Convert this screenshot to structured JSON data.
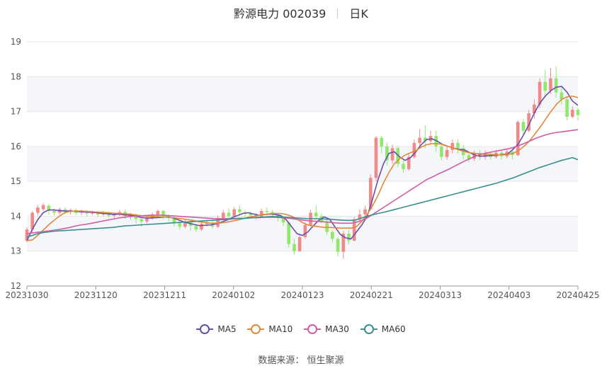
{
  "header": {
    "title": "黔源电力 002039",
    "period": "日K"
  },
  "source": "数据来源：  恒生聚源",
  "chart_data": {
    "type": "candlestick",
    "ylim": [
      12,
      19
    ],
    "yticks": [
      12,
      13,
      14,
      15,
      16,
      17,
      18,
      19
    ],
    "x_ticks": [
      "20231030",
      "20231120",
      "20231211",
      "20240102",
      "20240123",
      "20240221",
      "20240313",
      "20240403",
      "20240425"
    ],
    "colors": {
      "up": "#f08a8a",
      "down": "#8fe86a",
      "grid": "#e6e6e6",
      "band": "#f5f6fa",
      "axis": "#999999"
    },
    "candles": [
      [
        13.3,
        13.62,
        13.25,
        13.68
      ],
      [
        13.62,
        14.1,
        13.55,
        14.15
      ],
      [
        14.1,
        14.25,
        14.02,
        14.32
      ],
      [
        14.2,
        14.32,
        14.15,
        14.38
      ],
      [
        14.3,
        14.15,
        14.05,
        14.35
      ],
      [
        14.15,
        14.1,
        14.02,
        14.22
      ],
      [
        14.1,
        14.2,
        14.05,
        14.25
      ],
      [
        14.2,
        14.12,
        14.06,
        14.26
      ],
      [
        14.12,
        14.18,
        14.05,
        14.22
      ],
      [
        14.18,
        14.1,
        14.04,
        14.22
      ],
      [
        14.1,
        14.15,
        14.03,
        14.2
      ],
      [
        14.15,
        14.08,
        14.0,
        14.18
      ],
      [
        14.08,
        14.12,
        14.02,
        14.16
      ],
      [
        14.12,
        14.05,
        13.98,
        14.16
      ],
      [
        14.05,
        14.1,
        14.0,
        14.15
      ],
      [
        14.1,
        14.02,
        13.96,
        14.14
      ],
      [
        14.02,
        14.06,
        13.95,
        14.1
      ],
      [
        14.06,
        14.12,
        14.0,
        14.18
      ],
      [
        14.12,
        14.0,
        13.92,
        14.2
      ],
      [
        14.0,
        14.05,
        13.9,
        14.1
      ],
      [
        14.05,
        13.92,
        13.8,
        14.08
      ],
      [
        13.92,
        13.85,
        13.7,
        13.98
      ],
      [
        13.85,
        13.95,
        13.8,
        14.02
      ],
      [
        13.95,
        14.05,
        13.9,
        14.1
      ],
      [
        14.05,
        14.15,
        14.0,
        14.2
      ],
      [
        14.15,
        14.0,
        13.92,
        14.18
      ],
      [
        14.0,
        13.95,
        13.85,
        14.05
      ],
      [
        13.95,
        13.8,
        13.7,
        14.0
      ],
      [
        13.8,
        13.7,
        13.62,
        13.86
      ],
      [
        13.7,
        13.85,
        13.65,
        13.9
      ],
      [
        13.85,
        13.72,
        13.58,
        13.9
      ],
      [
        13.72,
        13.62,
        13.55,
        13.78
      ],
      [
        13.62,
        13.78,
        13.58,
        13.85
      ],
      [
        13.78,
        13.82,
        13.7,
        13.9
      ],
      [
        13.82,
        13.7,
        13.65,
        13.88
      ],
      [
        13.7,
        13.95,
        13.66,
        14.02
      ],
      [
        13.95,
        14.1,
        13.88,
        14.18
      ],
      [
        14.1,
        14.0,
        13.92,
        14.22
      ],
      [
        14.0,
        14.2,
        13.96,
        14.26
      ],
      [
        14.2,
        14.12,
        14.05,
        14.3
      ],
      [
        14.12,
        14.08,
        13.98,
        14.18
      ],
      [
        14.08,
        14.02,
        13.95,
        14.14
      ],
      [
        14.02,
        13.98,
        13.9,
        14.1
      ],
      [
        13.98,
        14.15,
        13.95,
        14.22
      ],
      [
        14.15,
        14.12,
        14.02,
        14.25
      ],
      [
        14.12,
        14.05,
        13.98,
        14.18
      ],
      [
        14.05,
        13.95,
        13.85,
        14.1
      ],
      [
        13.95,
        13.82,
        13.72,
        14.0
      ],
      [
        13.82,
        13.2,
        13.1,
        13.85
      ],
      [
        13.2,
        13.0,
        12.9,
        13.35
      ],
      [
        13.0,
        13.4,
        12.98,
        13.48
      ],
      [
        13.4,
        13.75,
        13.35,
        13.82
      ],
      [
        13.75,
        14.1,
        13.7,
        14.18
      ],
      [
        14.1,
        14.0,
        13.9,
        14.3
      ],
      [
        14.0,
        13.85,
        13.78,
        14.08
      ],
      [
        13.85,
        13.55,
        13.45,
        13.9
      ],
      [
        13.55,
        13.35,
        13.25,
        13.6
      ],
      [
        13.35,
        12.98,
        12.85,
        13.42
      ],
      [
        12.98,
        13.5,
        12.78,
        13.58
      ],
      [
        13.5,
        13.3,
        13.2,
        13.6
      ],
      [
        13.3,
        13.9,
        13.28,
        13.98
      ],
      [
        13.9,
        14.05,
        13.82,
        14.2
      ],
      [
        14.05,
        14.2,
        13.95,
        14.3
      ],
      [
        14.2,
        15.1,
        14.18,
        15.2
      ],
      [
        15.1,
        16.25,
        15.0,
        16.3
      ],
      [
        16.25,
        16.0,
        15.8,
        16.3
      ],
      [
        16.0,
        15.6,
        15.45,
        16.1
      ],
      [
        15.6,
        15.95,
        15.5,
        16.05
      ],
      [
        15.95,
        15.5,
        15.4,
        16.0
      ],
      [
        15.5,
        15.35,
        15.25,
        15.6
      ],
      [
        15.35,
        15.7,
        15.3,
        15.8
      ],
      [
        15.7,
        16.1,
        15.65,
        16.2
      ],
      [
        16.1,
        16.25,
        15.95,
        16.5
      ],
      [
        16.25,
        16.15,
        15.95,
        16.6
      ],
      [
        16.15,
        16.3,
        16.05,
        16.45
      ],
      [
        16.3,
        16.0,
        15.85,
        16.45
      ],
      [
        16.0,
        15.7,
        15.6,
        16.1
      ],
      [
        15.7,
        15.9,
        15.62,
        16.0
      ],
      [
        15.9,
        16.1,
        15.8,
        16.2
      ],
      [
        16.1,
        15.95,
        15.8,
        16.2
      ],
      [
        15.95,
        15.75,
        15.62,
        16.05
      ],
      [
        15.75,
        15.65,
        15.55,
        15.85
      ],
      [
        15.65,
        15.8,
        15.58,
        15.88
      ],
      [
        15.8,
        15.7,
        15.6,
        15.9
      ],
      [
        15.7,
        15.78,
        15.62,
        15.88
      ],
      [
        15.78,
        15.7,
        15.62,
        15.85
      ],
      [
        15.7,
        15.82,
        15.65,
        15.9
      ],
      [
        15.82,
        15.72,
        15.62,
        15.9
      ],
      [
        15.72,
        15.85,
        15.65,
        15.92
      ],
      [
        15.85,
        15.75,
        15.62,
        15.95
      ],
      [
        15.75,
        16.7,
        15.72,
        16.75
      ],
      [
        16.7,
        16.45,
        16.3,
        16.8
      ],
      [
        16.45,
        16.95,
        16.4,
        17.05
      ],
      [
        16.95,
        17.2,
        16.8,
        17.35
      ],
      [
        17.2,
        17.85,
        17.1,
        17.95
      ],
      [
        17.85,
        17.6,
        17.4,
        18.2
      ],
      [
        17.6,
        17.95,
        17.5,
        18.25
      ],
      [
        17.95,
        17.55,
        17.4,
        18.3
      ],
      [
        17.55,
        17.35,
        17.2,
        17.7
      ],
      [
        17.35,
        16.85,
        16.75,
        17.45
      ],
      [
        16.85,
        17.05,
        16.8,
        17.15
      ],
      [
        17.05,
        16.9,
        16.75,
        17.1
      ]
    ],
    "series": [
      {
        "name": "MA5",
        "color": "#6a4ea8",
        "values": [
          13.3,
          13.62,
          13.9,
          14.1,
          14.18,
          14.18,
          14.16,
          14.15,
          14.15,
          14.14,
          14.13,
          14.12,
          14.11,
          14.1,
          14.08,
          14.07,
          14.05,
          14.06,
          14.04,
          14.03,
          14.01,
          13.97,
          13.95,
          13.95,
          13.96,
          13.97,
          13.98,
          13.95,
          13.9,
          13.84,
          13.8,
          13.76,
          13.73,
          13.74,
          13.75,
          13.78,
          13.83,
          13.89,
          13.96,
          14.02,
          14.08,
          14.1,
          14.06,
          14.03,
          14.05,
          14.06,
          14.05,
          14.02,
          13.9,
          13.7,
          13.5,
          13.45,
          13.55,
          13.72,
          13.88,
          13.98,
          13.92,
          13.7,
          13.48,
          13.38,
          13.35,
          13.55,
          13.75,
          14.0,
          14.5,
          15.05,
          15.5,
          15.8,
          15.85,
          15.7,
          15.6,
          15.68,
          15.85,
          16.05,
          16.2,
          16.22,
          16.15,
          16.05,
          16.0,
          15.95,
          15.92,
          15.9,
          15.82,
          15.75,
          15.72,
          15.73,
          15.74,
          15.75,
          15.77,
          15.78,
          15.92,
          16.08,
          16.35,
          16.65,
          16.98,
          17.25,
          17.45,
          17.6,
          17.7,
          17.72,
          17.55,
          17.3,
          17.18
        ]
      },
      {
        "name": "MA10",
        "color": "#e08a38",
        "values": [
          13.3,
          13.32,
          13.45,
          13.6,
          13.75,
          13.88,
          14.0,
          14.1,
          14.14,
          14.15,
          14.15,
          14.14,
          14.13,
          14.12,
          14.11,
          14.1,
          14.09,
          14.08,
          14.07,
          14.06,
          14.04,
          14.02,
          14.0,
          13.99,
          13.99,
          13.98,
          13.97,
          13.96,
          13.94,
          13.92,
          13.9,
          13.87,
          13.84,
          13.82,
          13.8,
          13.8,
          13.81,
          13.83,
          13.86,
          13.89,
          13.93,
          13.97,
          14.0,
          14.03,
          14.05,
          14.07,
          14.08,
          14.08,
          14.05,
          14.0,
          13.92,
          13.82,
          13.75,
          13.72,
          13.7,
          13.68,
          13.68,
          13.67,
          13.66,
          13.66,
          13.66,
          13.7,
          13.85,
          14.05,
          14.3,
          14.6,
          14.95,
          15.25,
          15.5,
          15.65,
          15.75,
          15.82,
          15.88,
          15.98,
          16.05,
          16.08,
          16.08,
          16.06,
          16.0,
          15.95,
          15.9,
          15.85,
          15.82,
          15.8,
          15.79,
          15.78,
          15.77,
          15.76,
          15.76,
          15.77,
          15.8,
          15.88,
          16.0,
          16.15,
          16.35,
          16.55,
          16.78,
          17.0,
          17.2,
          17.35,
          17.42,
          17.44,
          17.4
        ]
      },
      {
        "name": "MA30",
        "color": "#d45ca4",
        "values": [
          13.5,
          13.52,
          13.54,
          13.56,
          13.58,
          13.6,
          13.62,
          13.65,
          13.68,
          13.72,
          13.75,
          13.77,
          13.8,
          13.83,
          13.86,
          13.89,
          13.92,
          13.95,
          13.97,
          13.99,
          14.0,
          14.01,
          14.02,
          14.03,
          14.03,
          14.03,
          14.02,
          14.01,
          14.0,
          13.99,
          13.98,
          13.97,
          13.96,
          13.95,
          13.94,
          13.93,
          13.93,
          13.93,
          13.93,
          13.94,
          13.94,
          13.95,
          13.96,
          13.96,
          13.97,
          13.97,
          13.97,
          13.96,
          13.95,
          13.93,
          13.91,
          13.89,
          13.87,
          13.86,
          13.85,
          13.84,
          13.83,
          13.81,
          13.8,
          13.8,
          13.8,
          13.83,
          13.88,
          13.95,
          14.05,
          14.15,
          14.25,
          14.35,
          14.45,
          14.55,
          14.65,
          14.75,
          14.85,
          14.95,
          15.05,
          15.12,
          15.2,
          15.27,
          15.34,
          15.42,
          15.5,
          15.58,
          15.65,
          15.72,
          15.77,
          15.81,
          15.84,
          15.87,
          15.9,
          15.93,
          15.97,
          16.02,
          16.08,
          16.15,
          16.22,
          16.28,
          16.33,
          16.37,
          16.4,
          16.42,
          16.44,
          16.46,
          16.48
        ]
      },
      {
        "name": "MA60",
        "color": "#3a8f8f",
        "values": [
          13.4,
          13.45,
          13.5,
          13.53,
          13.55,
          13.57,
          13.58,
          13.59,
          13.6,
          13.61,
          13.62,
          13.63,
          13.64,
          13.65,
          13.66,
          13.67,
          13.68,
          13.7,
          13.72,
          13.73,
          13.74,
          13.75,
          13.76,
          13.77,
          13.78,
          13.79,
          13.8,
          13.81,
          13.82,
          13.83,
          13.84,
          13.85,
          13.86,
          13.87,
          13.88,
          13.89,
          13.9,
          13.91,
          13.92,
          13.93,
          13.94,
          13.95,
          13.96,
          13.97,
          13.98,
          13.99,
          13.99,
          13.98,
          13.97,
          13.96,
          13.95,
          13.94,
          13.93,
          13.93,
          13.93,
          13.92,
          13.91,
          13.9,
          13.89,
          13.88,
          13.88,
          13.9,
          13.95,
          14.0,
          14.04,
          14.08,
          14.11,
          14.15,
          14.19,
          14.23,
          14.27,
          14.31,
          14.35,
          14.39,
          14.43,
          14.47,
          14.51,
          14.55,
          14.59,
          14.63,
          14.67,
          14.71,
          14.75,
          14.79,
          14.83,
          14.87,
          14.91,
          14.95,
          15.0,
          15.05,
          15.1,
          15.16,
          15.22,
          15.28,
          15.34,
          15.4,
          15.45,
          15.5,
          15.55,
          15.6,
          15.64,
          15.68,
          15.62
        ]
      }
    ]
  }
}
